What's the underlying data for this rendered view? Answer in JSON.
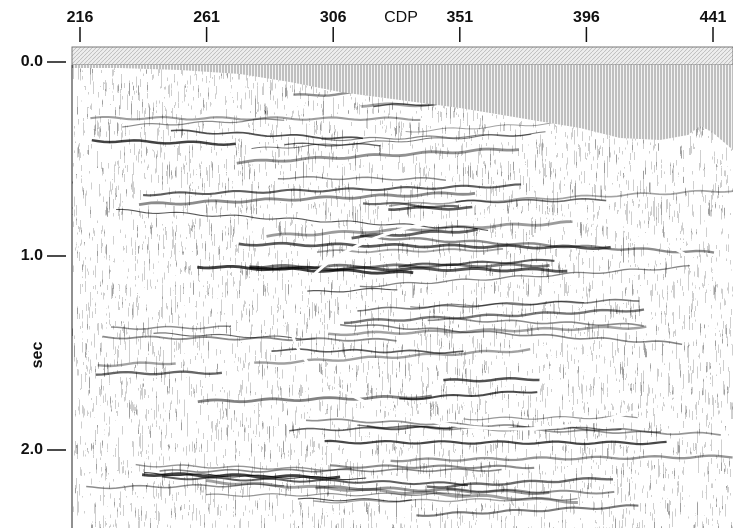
{
  "x_axis": {
    "label": "CDP",
    "ticks": [
      216,
      261,
      306,
      351,
      396,
      441
    ]
  },
  "y_axis": {
    "label": "sec",
    "ticks": [
      {
        "value": 0,
        "label": "0.0"
      },
      {
        "value": 1,
        "label": "1.0"
      },
      {
        "value": 2,
        "label": "2.0"
      }
    ]
  }
}
